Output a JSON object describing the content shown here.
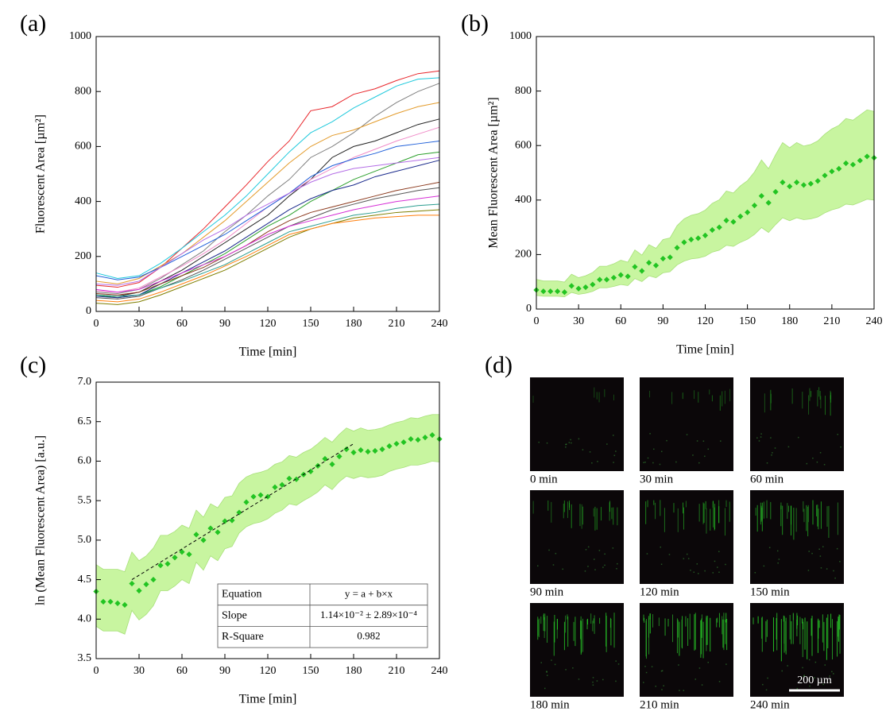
{
  "chart_data": [
    {
      "type": "line",
      "panel": "(a)",
      "xlabel": "Time [min]",
      "ylabel": "Fluorescent Area [µm²]",
      "x": [
        0,
        15,
        30,
        45,
        60,
        75,
        90,
        105,
        120,
        135,
        150,
        165,
        180,
        195,
        210,
        225,
        240
      ],
      "series": [
        {
          "color": "#e8262b",
          "values": [
            95,
            88,
            105,
            160,
            230,
            300,
            380,
            460,
            545,
            620,
            730,
            745,
            790,
            810,
            840,
            865,
            875
          ]
        },
        {
          "color": "#1fc9dc",
          "values": [
            140,
            120,
            130,
            175,
            230,
            290,
            350,
            420,
            500,
            580,
            650,
            690,
            740,
            780,
            820,
            845,
            850
          ]
        },
        {
          "color": "#808080",
          "values": [
            70,
            65,
            80,
            120,
            170,
            220,
            290,
            350,
            420,
            480,
            560,
            600,
            650,
            710,
            760,
            800,
            830
          ]
        },
        {
          "color": "#e39b2b",
          "values": [
            110,
            100,
            120,
            165,
            210,
            270,
            330,
            400,
            470,
            540,
            600,
            640,
            660,
            690,
            720,
            745,
            760
          ]
        },
        {
          "color": "#222222",
          "values": [
            60,
            55,
            70,
            110,
            150,
            200,
            250,
            300,
            350,
            420,
            480,
            560,
            600,
            620,
            650,
            680,
            700
          ]
        },
        {
          "color": "#f08cc8",
          "values": [
            75,
            70,
            85,
            125,
            165,
            210,
            260,
            320,
            380,
            430,
            480,
            520,
            560,
            590,
            620,
            645,
            670
          ]
        },
        {
          "color": "#1f5fd9",
          "values": [
            130,
            115,
            125,
            160,
            200,
            240,
            280,
            330,
            380,
            430,
            490,
            530,
            555,
            575,
            600,
            610,
            620
          ]
        },
        {
          "color": "#2ca02c",
          "values": [
            60,
            50,
            60,
            90,
            130,
            170,
            210,
            260,
            310,
            350,
            400,
            440,
            480,
            510,
            540,
            570,
            580
          ]
        },
        {
          "color": "#b46ee6",
          "values": [
            100,
            95,
            110,
            160,
            210,
            260,
            300,
            350,
            390,
            430,
            470,
            500,
            520,
            530,
            540,
            550,
            560
          ]
        },
        {
          "color": "#1a2a8c",
          "values": [
            55,
            50,
            60,
            100,
            140,
            180,
            220,
            270,
            320,
            370,
            410,
            440,
            460,
            490,
            510,
            530,
            550
          ]
        },
        {
          "color": "#8c3a1e",
          "values": [
            65,
            60,
            70,
            100,
            130,
            160,
            200,
            240,
            290,
            330,
            360,
            380,
            400,
            420,
            440,
            455,
            470
          ]
        },
        {
          "color": "#555555",
          "values": [
            50,
            45,
            55,
            85,
            115,
            150,
            190,
            230,
            270,
            310,
            340,
            370,
            390,
            410,
            425,
            440,
            450
          ]
        },
        {
          "color": "#d62fd6",
          "values": [
            80,
            70,
            80,
            110,
            140,
            170,
            200,
            240,
            280,
            310,
            330,
            350,
            370,
            385,
            400,
            410,
            420
          ]
        },
        {
          "color": "#2a9d8f",
          "values": [
            60,
            55,
            60,
            85,
            110,
            140,
            170,
            210,
            250,
            290,
            310,
            330,
            350,
            360,
            375,
            385,
            390
          ]
        },
        {
          "color": "#7f7f00",
          "values": [
            30,
            25,
            35,
            60,
            90,
            120,
            150,
            190,
            230,
            270,
            300,
            320,
            340,
            350,
            360,
            365,
            370
          ]
        },
        {
          "color": "#ff7f0e",
          "values": [
            40,
            35,
            45,
            70,
            100,
            130,
            165,
            200,
            240,
            280,
            300,
            320,
            330,
            340,
            345,
            350,
            350
          ]
        }
      ],
      "xlim": [
        0,
        240
      ],
      "ylim": [
        0,
        1000
      ],
      "xticks": [
        0,
        30,
        60,
        90,
        120,
        150,
        180,
        210,
        240
      ],
      "yticks": [
        0,
        200,
        400,
        600,
        800,
        1000
      ]
    },
    {
      "type": "scatter",
      "panel": "(b)",
      "xlabel": "Time [min]",
      "ylabel": "Mean Fluorescent Area [µm²]",
      "x": [
        0,
        5,
        10,
        15,
        20,
        25,
        30,
        35,
        40,
        45,
        50,
        55,
        60,
        65,
        70,
        75,
        80,
        85,
        90,
        95,
        100,
        105,
        110,
        115,
        120,
        125,
        130,
        135,
        140,
        145,
        150,
        155,
        160,
        165,
        170,
        175,
        180,
        185,
        190,
        195,
        200,
        205,
        210,
        215,
        220,
        225,
        230,
        235,
        240
      ],
      "series": [
        {
          "color": "#22c422",
          "values": [
            70,
            65,
            65,
            65,
            62,
            85,
            75,
            80,
            90,
            108,
            108,
            115,
            125,
            120,
            155,
            140,
            170,
            160,
            185,
            190,
            225,
            245,
            255,
            260,
            270,
            290,
            300,
            325,
            320,
            340,
            355,
            380,
            415,
            390,
            430,
            465,
            450,
            465,
            455,
            460,
            470,
            490,
            505,
            515,
            535,
            530,
            545,
            560,
            555
          ]
        }
      ],
      "band": {
        "color": "#c8f5a0",
        "upper": [
          109,
          103,
          103,
          103,
          99,
          128,
          115,
          122,
          134,
          157,
          157,
          166,
          179,
          172,
          217,
          198,
          236,
          223,
          255,
          261,
          306,
          331,
          344,
          350,
          363,
          388,
          401,
          433,
          426,
          452,
          471,
          503,
          547,
          515,
          566,
          611,
          592,
          611,
          598,
          604,
          617,
          642,
          661,
          674,
          699,
          693,
          712,
          731,
          725
        ],
        "lower": [
          50,
          47,
          47,
          47,
          45,
          61,
          54,
          58,
          65,
          78,
          78,
          83,
          90,
          86,
          112,
          101,
          122,
          115,
          133,
          137,
          162,
          176,
          184,
          187,
          194,
          209,
          216,
          234,
          230,
          245,
          256,
          274,
          299,
          281,
          310,
          335,
          324,
          335,
          328,
          331,
          338,
          353,
          364,
          371,
          385,
          382,
          392,
          403,
          400
        ]
      },
      "xlim": [
        0,
        240
      ],
      "ylim": [
        0,
        1000
      ],
      "xticks": [
        0,
        30,
        60,
        90,
        120,
        150,
        180,
        210,
        240
      ],
      "yticks": [
        0,
        200,
        400,
        600,
        800,
        1000
      ]
    },
    {
      "type": "scatter",
      "panel": "(c)",
      "xlabel": "Time [min]",
      "ylabel": "ln (Mean Fluorescent Area) [a.u.]",
      "x": [
        0,
        5,
        10,
        15,
        20,
        25,
        30,
        35,
        40,
        45,
        50,
        55,
        60,
        65,
        70,
        75,
        80,
        85,
        90,
        95,
        100,
        105,
        110,
        115,
        120,
        125,
        130,
        135,
        140,
        145,
        150,
        155,
        160,
        165,
        170,
        175,
        180,
        185,
        190,
        195,
        200,
        205,
        210,
        215,
        220,
        225,
        230,
        235,
        240
      ],
      "series": [
        {
          "color": "#22c422",
          "values": [
            4.35,
            4.22,
            4.22,
            4.2,
            4.18,
            4.45,
            4.36,
            4.44,
            4.5,
            4.68,
            4.7,
            4.78,
            4.85,
            4.82,
            5.07,
            5.0,
            5.15,
            5.1,
            5.24,
            5.25,
            5.35,
            5.48,
            5.55,
            5.57,
            5.55,
            5.67,
            5.7,
            5.78,
            5.77,
            5.83,
            5.87,
            5.94,
            6.03,
            5.96,
            6.06,
            6.15,
            6.11,
            6.14,
            6.12,
            6.13,
            6.15,
            6.19,
            6.22,
            6.24,
            6.28,
            6.27,
            6.3,
            6.33,
            6.28
          ]
        }
      ],
      "band": {
        "color": "#c8f5a0",
        "upper": [
          4.69,
          4.63,
          4.63,
          4.63,
          4.6,
          4.85,
          4.74,
          4.8,
          4.9,
          5.06,
          5.06,
          5.11,
          5.19,
          5.15,
          5.38,
          5.29,
          5.46,
          5.41,
          5.54,
          5.56,
          5.72,
          5.8,
          5.84,
          5.86,
          5.89,
          5.96,
          5.99,
          6.07,
          6.05,
          6.11,
          6.15,
          6.22,
          6.3,
          6.24,
          6.34,
          6.42,
          6.38,
          6.42,
          6.39,
          6.4,
          6.42,
          6.46,
          6.49,
          6.51,
          6.55,
          6.54,
          6.57,
          6.59,
          6.59
        ],
        "lower": [
          3.91,
          3.85,
          3.85,
          3.85,
          3.81,
          4.11,
          3.99,
          4.06,
          4.17,
          4.36,
          4.36,
          4.42,
          4.5,
          4.45,
          4.72,
          4.62,
          4.8,
          4.74,
          4.89,
          4.92,
          5.09,
          5.17,
          5.21,
          5.23,
          5.27,
          5.34,
          5.38,
          5.46,
          5.44,
          5.5,
          5.55,
          5.61,
          5.7,
          5.64,
          5.74,
          5.81,
          5.78,
          5.81,
          5.79,
          5.8,
          5.82,
          5.87,
          5.9,
          5.92,
          5.95,
          5.95,
          5.97,
          6.0,
          5.99
        ]
      },
      "fit": {
        "x": [
          25,
          180
        ],
        "values": [
          4.5,
          6.22
        ],
        "color": "#000000"
      },
      "table": {
        "rows": [
          [
            "Equation",
            "y = a + b×x"
          ],
          [
            "Slope",
            "1.14×10⁻² ± 2.89×10⁻⁴"
          ],
          [
            "R-Square",
            "0.982"
          ]
        ]
      },
      "xlim": [
        0,
        240
      ],
      "ylim": [
        3.5,
        7.0
      ],
      "xticks": [
        0,
        30,
        60,
        90,
        120,
        150,
        180,
        210,
        240
      ],
      "yticks": [
        3.5,
        {
          "value": 4,
          "label": "4.0"
        },
        4.5,
        {
          "value": 5,
          "label": "5.0"
        },
        5.5,
        {
          "value": 6,
          "label": "6.0"
        },
        6.5,
        {
          "value": 7,
          "label": "7.0"
        }
      ]
    }
  ],
  "image_panel": {
    "panel": "(d)",
    "captions": [
      "0 min",
      "30 min",
      "60 min",
      "90 min",
      "120 min",
      "150 min",
      "180 min",
      "210 min",
      "240 min"
    ],
    "scale_bar": "200 µm"
  }
}
